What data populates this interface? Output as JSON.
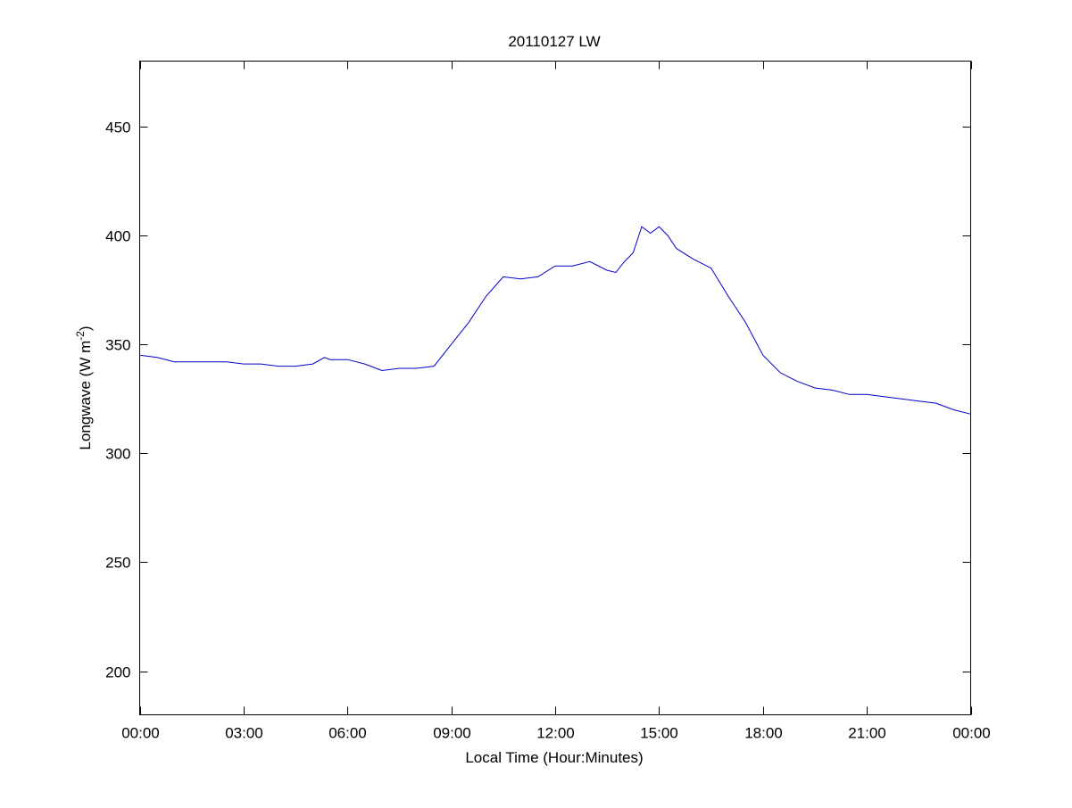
{
  "chart_data": {
    "type": "line",
    "title": "20110127 LW",
    "xlabel": "Local Time (Hour:Minutes)",
    "ylabel": "Longwave (W m",
    "ylabel_sup": "-2",
    "ylabel_close": ")",
    "xlim_hours": [
      0,
      24
    ],
    "ylim": [
      180,
      480
    ],
    "x_ticks": [
      "00:00",
      "03:00",
      "06:00",
      "09:00",
      "12:00",
      "15:00",
      "18:00",
      "21:00",
      "00:00"
    ],
    "y_ticks": [
      200,
      250,
      300,
      350,
      400,
      450
    ],
    "grid": false,
    "line_color": "#0000CC",
    "series": [
      {
        "x": [
          "00:00",
          "00:30",
          "01:00",
          "01:30",
          "02:00",
          "02:30",
          "03:00",
          "03:30",
          "04:00",
          "04:30",
          "05:00",
          "05:20",
          "05:30",
          "06:00",
          "06:30",
          "07:00",
          "07:30",
          "08:00",
          "08:30",
          "09:00",
          "09:30",
          "10:00",
          "10:30",
          "11:00",
          "11:30",
          "12:00",
          "12:30",
          "13:00",
          "13:30",
          "13:45",
          "14:00",
          "14:15",
          "14:30",
          "14:45",
          "15:00",
          "15:15",
          "15:30",
          "16:00",
          "16:30",
          "17:00",
          "17:30",
          "18:00",
          "18:30",
          "19:00",
          "19:30",
          "20:00",
          "20:30",
          "21:00",
          "21:30",
          "22:00",
          "22:30",
          "23:00",
          "23:30",
          "24:00"
        ],
        "y": [
          345,
          344,
          342,
          342,
          342,
          342,
          341,
          341,
          340,
          340,
          341,
          344,
          343,
          343,
          341,
          338,
          339,
          339,
          340,
          350,
          360,
          372,
          381,
          380,
          381,
          386,
          386,
          388,
          384,
          383,
          388,
          392,
          404,
          401,
          404,
          400,
          394,
          389,
          385,
          372,
          360,
          345,
          337,
          333,
          330,
          329,
          327,
          327,
          326,
          325,
          324,
          323,
          320,
          318
        ]
      }
    ]
  }
}
